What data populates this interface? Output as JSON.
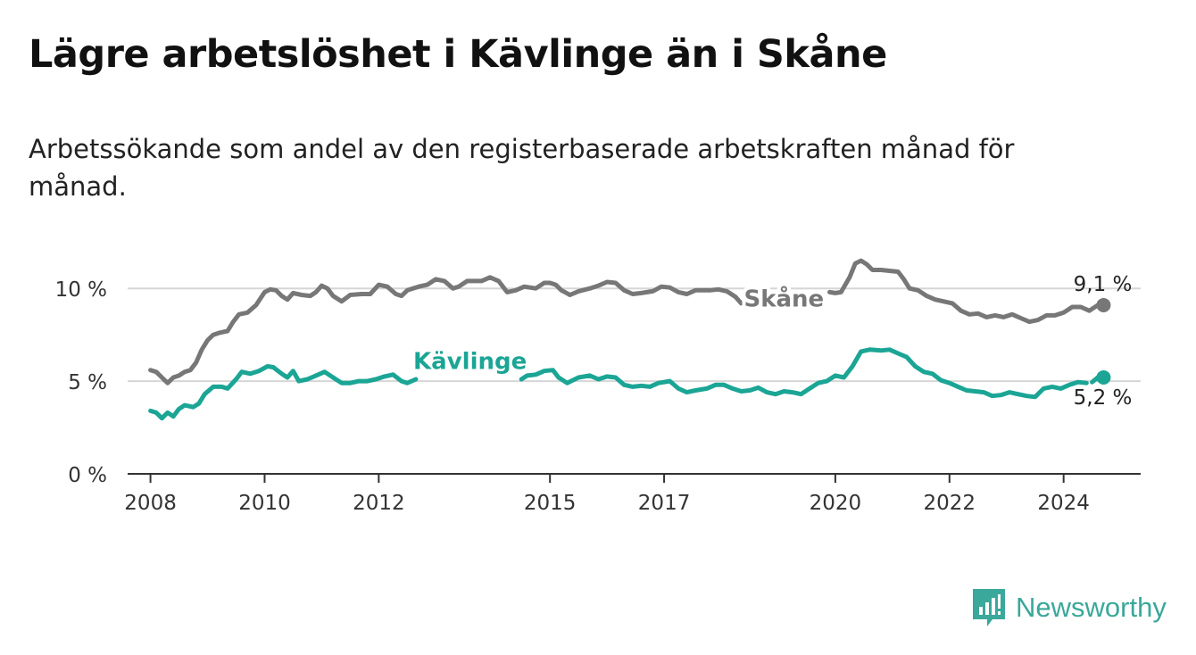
{
  "header": {
    "title": "Lägre arbetslöshet i Kävlinge än i Skåne",
    "subtitle": "Arbetssökande som andel av den registerbaserade arbetskraften månad för månad."
  },
  "brand": {
    "name": "Newsworthy",
    "icon": "bar-chart-flag-icon",
    "color": "#3aa89a"
  },
  "chart_data": {
    "type": "line",
    "title": "Lägre arbetslöshet i Kävlinge än i Skåne",
    "subtitle": "Arbetssökande som andel av den registerbaserade arbetskraften månad för månad.",
    "xlabel": "",
    "ylabel": "",
    "xlim": [
      2007.6,
      2025.35
    ],
    "ylim": [
      0,
      11.6
    ],
    "grid": true,
    "y_ticks": [
      {
        "value": 0,
        "label": "0 %"
      },
      {
        "value": 5,
        "label": "5 %"
      },
      {
        "value": 10,
        "label": "10 %"
      }
    ],
    "x_ticks": [
      {
        "value": 2008,
        "label": "2008"
      },
      {
        "value": 2010,
        "label": "2010"
      },
      {
        "value": 2012,
        "label": "2012"
      },
      {
        "value": 2015,
        "label": "2015"
      },
      {
        "value": 2017,
        "label": "2017"
      },
      {
        "value": 2020,
        "label": "2020"
      },
      {
        "value": 2022,
        "label": "2022"
      },
      {
        "value": 2024,
        "label": "2024"
      }
    ],
    "series": [
      {
        "name": "Skåne",
        "color": "#777777",
        "end_label": "9,1 %",
        "points": [
          [
            2008.0,
            5.6
          ],
          [
            2008.1,
            5.5
          ],
          [
            2008.2,
            5.2
          ],
          [
            2008.3,
            4.9
          ],
          [
            2008.4,
            5.2
          ],
          [
            2008.5,
            5.3
          ],
          [
            2008.6,
            5.5
          ],
          [
            2008.7,
            5.6
          ],
          [
            2008.8,
            6.0
          ],
          [
            2008.9,
            6.7
          ],
          [
            2009.0,
            7.2
          ],
          [
            2009.1,
            7.5
          ],
          [
            2009.2,
            7.6
          ],
          [
            2009.35,
            7.7
          ],
          [
            2009.45,
            8.2
          ],
          [
            2009.55,
            8.6
          ],
          [
            2009.7,
            8.7
          ],
          [
            2009.85,
            9.1
          ],
          [
            2010.0,
            9.8
          ],
          [
            2010.1,
            9.95
          ],
          [
            2010.2,
            9.9
          ],
          [
            2010.3,
            9.6
          ],
          [
            2010.4,
            9.4
          ],
          [
            2010.5,
            9.75
          ],
          [
            2010.65,
            9.65
          ],
          [
            2010.8,
            9.6
          ],
          [
            2010.9,
            9.8
          ],
          [
            2011.0,
            10.15
          ],
          [
            2011.1,
            10.0
          ],
          [
            2011.2,
            9.6
          ],
          [
            2011.35,
            9.3
          ],
          [
            2011.5,
            9.65
          ],
          [
            2011.7,
            9.7
          ],
          [
            2011.85,
            9.7
          ],
          [
            2012.0,
            10.2
          ],
          [
            2012.15,
            10.1
          ],
          [
            2012.3,
            9.7
          ],
          [
            2012.4,
            9.6
          ],
          [
            2012.5,
            9.9
          ],
          [
            2012.7,
            10.1
          ],
          [
            2012.85,
            10.2
          ],
          [
            2013.0,
            10.5
          ],
          [
            2013.15,
            10.4
          ],
          [
            2013.3,
            10.0
          ],
          [
            2013.4,
            10.1
          ],
          [
            2013.55,
            10.4
          ],
          [
            2013.8,
            10.4
          ],
          [
            2013.95,
            10.6
          ],
          [
            2014.1,
            10.4
          ],
          [
            2014.25,
            9.8
          ],
          [
            2014.4,
            9.9
          ],
          [
            2014.55,
            10.1
          ],
          [
            2014.75,
            10.0
          ],
          [
            2014.9,
            10.3
          ],
          [
            2015.0,
            10.3
          ],
          [
            2015.1,
            10.2
          ],
          [
            2015.2,
            9.9
          ],
          [
            2015.35,
            9.65
          ],
          [
            2015.5,
            9.85
          ],
          [
            2015.7,
            10.0
          ],
          [
            2015.85,
            10.15
          ],
          [
            2016.0,
            10.35
          ],
          [
            2016.15,
            10.3
          ],
          [
            2016.3,
            9.9
          ],
          [
            2016.45,
            9.7
          ],
          [
            2016.6,
            9.75
          ],
          [
            2016.8,
            9.85
          ],
          [
            2016.95,
            10.1
          ],
          [
            2017.1,
            10.05
          ],
          [
            2017.25,
            9.8
          ],
          [
            2017.4,
            9.7
          ],
          [
            2017.55,
            9.9
          ],
          [
            2017.8,
            9.9
          ],
          [
            2017.95,
            9.95
          ],
          [
            2018.1,
            9.85
          ],
          [
            2018.25,
            9.55
          ],
          [
            2018.35,
            9.2
          ]
        ],
        "points_after_gap": [
          [
            2019.9,
            9.8
          ],
          [
            2020.0,
            9.75
          ],
          [
            2020.1,
            9.8
          ],
          [
            2020.25,
            10.6
          ],
          [
            2020.35,
            11.35
          ],
          [
            2020.45,
            11.5
          ],
          [
            2020.55,
            11.3
          ],
          [
            2020.65,
            11.0
          ],
          [
            2020.8,
            11.0
          ],
          [
            2020.95,
            10.95
          ],
          [
            2021.1,
            10.9
          ],
          [
            2021.2,
            10.5
          ],
          [
            2021.3,
            10.0
          ],
          [
            2021.45,
            9.9
          ],
          [
            2021.6,
            9.6
          ],
          [
            2021.75,
            9.4
          ],
          [
            2021.9,
            9.3
          ],
          [
            2022.05,
            9.2
          ],
          [
            2022.2,
            8.8
          ],
          [
            2022.35,
            8.6
          ],
          [
            2022.5,
            8.65
          ],
          [
            2022.65,
            8.45
          ],
          [
            2022.8,
            8.55
          ],
          [
            2022.95,
            8.45
          ],
          [
            2023.1,
            8.6
          ],
          [
            2023.25,
            8.4
          ],
          [
            2023.4,
            8.2
          ],
          [
            2023.55,
            8.3
          ],
          [
            2023.7,
            8.55
          ],
          [
            2023.85,
            8.55
          ],
          [
            2024.0,
            8.7
          ],
          [
            2024.15,
            9.0
          ],
          [
            2024.3,
            9.0
          ],
          [
            2024.45,
            8.8
          ],
          [
            2024.6,
            9.1
          ],
          [
            2024.7,
            9.1
          ]
        ]
      },
      {
        "name": "Kävlinge",
        "color": "#1ba595",
        "end_label": "5,2 %",
        "points": [
          [
            2008.0,
            3.4
          ],
          [
            2008.1,
            3.3
          ],
          [
            2008.2,
            3.0
          ],
          [
            2008.3,
            3.3
          ],
          [
            2008.4,
            3.1
          ],
          [
            2008.5,
            3.5
          ],
          [
            2008.6,
            3.7
          ],
          [
            2008.75,
            3.6
          ],
          [
            2008.85,
            3.8
          ],
          [
            2008.95,
            4.3
          ],
          [
            2009.1,
            4.7
          ],
          [
            2009.25,
            4.7
          ],
          [
            2009.35,
            4.6
          ],
          [
            2009.5,
            5.1
          ],
          [
            2009.6,
            5.5
          ],
          [
            2009.75,
            5.4
          ],
          [
            2009.9,
            5.55
          ],
          [
            2010.05,
            5.8
          ],
          [
            2010.15,
            5.75
          ],
          [
            2010.3,
            5.4
          ],
          [
            2010.4,
            5.2
          ],
          [
            2010.5,
            5.55
          ],
          [
            2010.6,
            5.0
          ],
          [
            2010.75,
            5.1
          ],
          [
            2010.9,
            5.3
          ],
          [
            2011.05,
            5.5
          ],
          [
            2011.2,
            5.2
          ],
          [
            2011.35,
            4.9
          ],
          [
            2011.5,
            4.9
          ],
          [
            2011.65,
            5.0
          ],
          [
            2011.8,
            5.0
          ],
          [
            2011.95,
            5.1
          ],
          [
            2012.1,
            5.25
          ],
          [
            2012.25,
            5.35
          ],
          [
            2012.4,
            5.0
          ],
          [
            2012.5,
            4.9
          ],
          [
            2012.65,
            5.1
          ]
        ],
        "points_after_gap": [
          [
            2014.5,
            5.1
          ],
          [
            2014.6,
            5.3
          ],
          [
            2014.75,
            5.35
          ],
          [
            2014.9,
            5.55
          ],
          [
            2015.05,
            5.6
          ],
          [
            2015.15,
            5.2
          ],
          [
            2015.3,
            4.9
          ],
          [
            2015.5,
            5.2
          ],
          [
            2015.7,
            5.3
          ],
          [
            2015.85,
            5.1
          ],
          [
            2016.0,
            5.25
          ],
          [
            2016.15,
            5.2
          ],
          [
            2016.3,
            4.8
          ],
          [
            2016.45,
            4.7
          ],
          [
            2016.6,
            4.75
          ],
          [
            2016.75,
            4.7
          ],
          [
            2016.9,
            4.9
          ],
          [
            2017.1,
            5.0
          ],
          [
            2017.25,
            4.6
          ],
          [
            2017.4,
            4.4
          ],
          [
            2017.55,
            4.5
          ],
          [
            2017.75,
            4.6
          ],
          [
            2017.9,
            4.8
          ],
          [
            2018.05,
            4.8
          ],
          [
            2018.2,
            4.6
          ],
          [
            2018.35,
            4.45
          ],
          [
            2018.5,
            4.5
          ],
          [
            2018.65,
            4.65
          ],
          [
            2018.8,
            4.4
          ],
          [
            2018.95,
            4.3
          ],
          [
            2019.1,
            4.45
          ],
          [
            2019.25,
            4.4
          ],
          [
            2019.4,
            4.3
          ],
          [
            2019.55,
            4.6
          ],
          [
            2019.7,
            4.9
          ],
          [
            2019.85,
            5.0
          ],
          [
            2020.0,
            5.3
          ],
          [
            2020.15,
            5.2
          ],
          [
            2020.3,
            5.8
          ],
          [
            2020.45,
            6.6
          ],
          [
            2020.6,
            6.7
          ],
          [
            2020.8,
            6.65
          ],
          [
            2020.95,
            6.7
          ],
          [
            2021.1,
            6.5
          ],
          [
            2021.25,
            6.3
          ],
          [
            2021.4,
            5.8
          ],
          [
            2021.55,
            5.5
          ],
          [
            2021.7,
            5.4
          ],
          [
            2021.85,
            5.05
          ],
          [
            2022.0,
            4.9
          ],
          [
            2022.15,
            4.7
          ],
          [
            2022.3,
            4.5
          ],
          [
            2022.45,
            4.45
          ],
          [
            2022.6,
            4.4
          ],
          [
            2022.75,
            4.2
          ],
          [
            2022.9,
            4.25
          ],
          [
            2023.05,
            4.4
          ],
          [
            2023.2,
            4.3
          ],
          [
            2023.35,
            4.2
          ],
          [
            2023.5,
            4.15
          ],
          [
            2023.65,
            4.6
          ],
          [
            2023.8,
            4.7
          ],
          [
            2023.95,
            4.6
          ],
          [
            2024.1,
            4.8
          ],
          [
            2024.25,
            4.95
          ],
          [
            2024.4,
            4.9
          ]
        ],
        "points_final": [
          [
            2024.5,
            4.95
          ],
          [
            2024.6,
            5.2
          ],
          [
            2024.7,
            5.2
          ]
        ]
      }
    ],
    "series_labels": [
      {
        "series": "Skåne",
        "text": "Skåne",
        "at": [
          2019.1,
          9.4
        ]
      },
      {
        "series": "Kävlinge",
        "text": "Kävlinge",
        "at": [
          2013.6,
          6.05
        ]
      }
    ]
  }
}
